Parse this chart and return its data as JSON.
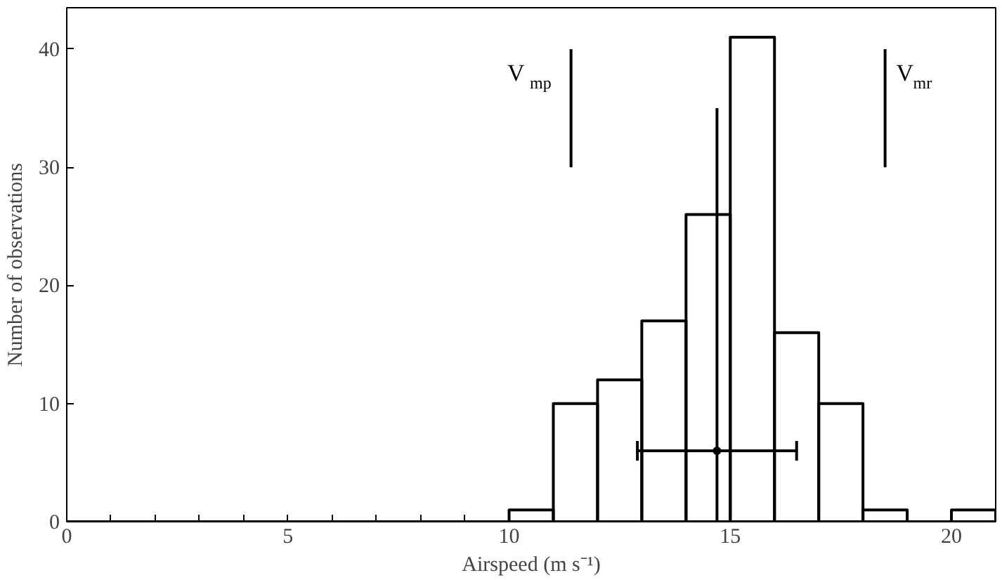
{
  "chart_data": {
    "type": "histogram",
    "xlabel": "Airspeed (m s⁻¹)",
    "ylabel": "Number of observations",
    "bins": [
      10,
      11,
      12,
      13,
      14,
      15,
      16,
      17,
      18,
      19,
      20,
      21
    ],
    "values": [
      1,
      10,
      12,
      17,
      26,
      41,
      16,
      10,
      1,
      0,
      1
    ],
    "color": "#000000",
    "series": [
      {
        "type": "line",
        "x": [
          11.4,
          11.4
        ],
        "values": [
          30,
          40
        ],
        "color": "#000000"
      },
      {
        "type": "line",
        "x": [
          18.5,
          18.5
        ],
        "values": [
          30,
          40
        ],
        "color": "#000000"
      },
      {
        "type": "line",
        "x": [
          14.7,
          14.7
        ],
        "values": [
          0,
          35
        ],
        "color": "#000000"
      },
      {
        "type": "scatter",
        "x": [
          14.7
        ],
        "values": [
          6
        ],
        "xerrors": [
          [
            12.9,
            16.5
          ]
        ],
        "color": "#000000",
        "marker": "circle"
      }
    ],
    "annotations": [
      "V$_{mp}$",
      "V$_{mr}$"
    ],
    "xlim": [
      0,
      21
    ],
    "ylim": [
      0,
      43.5
    ],
    "xticks": [
      0,
      {
        "value": 1,
        "label": null
      },
      {
        "value": 2,
        "label": null
      },
      {
        "value": 3,
        "label": null
      },
      {
        "value": 4,
        "label": null
      },
      5,
      {
        "value": 6,
        "label": null
      },
      {
        "value": 7,
        "label": null
      },
      {
        "value": 8,
        "label": null
      },
      {
        "value": 9,
        "label": null
      },
      10,
      {
        "value": 11,
        "label": null
      },
      {
        "value": 12,
        "label": null
      },
      {
        "value": 13,
        "label": null
      },
      {
        "value": 14,
        "label": null
      },
      15,
      {
        "value": 16,
        "label": null
      },
      {
        "value": 17,
        "label": null
      },
      {
        "value": 18,
        "label": null
      },
      {
        "value": 19,
        "label": null
      },
      20
    ],
    "yticks": [
      0,
      10,
      20,
      30,
      40
    ],
    "grid": false
  }
}
